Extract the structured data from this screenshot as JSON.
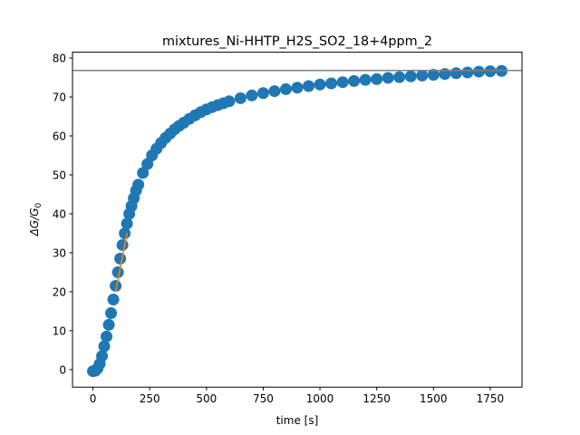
{
  "chart_data": {
    "type": "scatter",
    "title": "mixtures_Ni-HHTP_H2S_SO2_18+4ppm_2",
    "xlabel": "time [s]",
    "ylabel": "ΔG/G",
    "ylabel_subscript": "0",
    "xlim": [
      -90,
      1890
    ],
    "ylim": [
      -4.5,
      81.5
    ],
    "x_ticks": [
      0,
      250,
      500,
      750,
      1000,
      1250,
      1500,
      1750
    ],
    "y_ticks": [
      0,
      10,
      20,
      30,
      40,
      50,
      60,
      70,
      80
    ],
    "series": [
      {
        "kind": "scatter",
        "color": "#1f77b4",
        "x": [
          0,
          10,
          20,
          30,
          40,
          50,
          60,
          70,
          80,
          90,
          100,
          110,
          120,
          130,
          140,
          150,
          160,
          170,
          180,
          190,
          200,
          220,
          240,
          260,
          280,
          300,
          320,
          340,
          360,
          380,
          400,
          425,
          450,
          475,
          500,
          525,
          550,
          575,
          600,
          650,
          700,
          750,
          800,
          850,
          900,
          950,
          1000,
          1050,
          1100,
          1150,
          1200,
          1250,
          1300,
          1350,
          1400,
          1450,
          1500,
          1550,
          1600,
          1650,
          1700,
          1750,
          1800
        ],
        "y": [
          -0.4,
          -0.3,
          0.3,
          1.5,
          3.5,
          6,
          8.5,
          11.5,
          14.5,
          18,
          21.5,
          25,
          28.5,
          32,
          35,
          37.5,
          40,
          42,
          44,
          46,
          47.5,
          50.5,
          52.8,
          55,
          56.7,
          58.2,
          59.5,
          60.6,
          61.7,
          62.6,
          63.4,
          64.4,
          65.3,
          66.1,
          66.8,
          67.4,
          67.9,
          68.4,
          68.9,
          69.7,
          70.4,
          71,
          71.5,
          72,
          72.4,
          72.8,
          73.2,
          73.5,
          73.8,
          74.1,
          74.4,
          74.6,
          74.9,
          75.1,
          75.3,
          75.5,
          75.7,
          75.9,
          76.1,
          76.3,
          76.5,
          76.6,
          76.7
        ]
      },
      {
        "kind": "line",
        "color": "#ff7f0e",
        "x": [
          100,
          150
        ],
        "y": [
          20,
          35
        ]
      },
      {
        "kind": "hline",
        "color": "#808080",
        "y": 76.8
      }
    ]
  }
}
